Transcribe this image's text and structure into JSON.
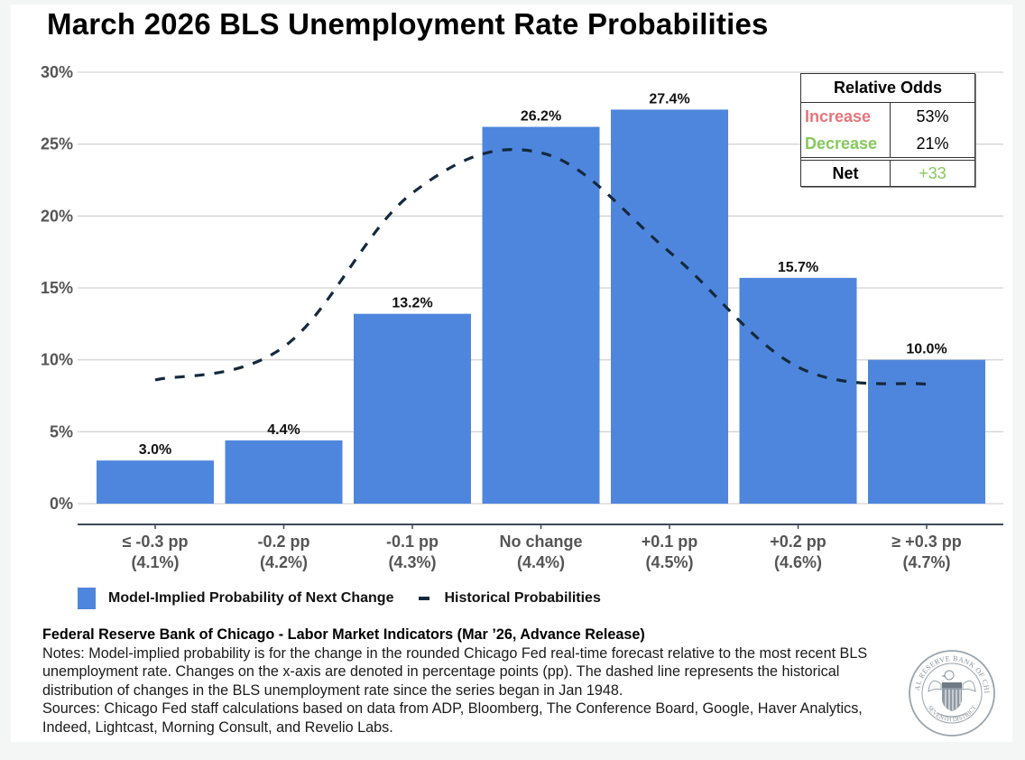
{
  "title": "March 2026 BLS Unemployment Rate Probabilities",
  "colors": {
    "bar": "#4f86dd",
    "line": "#14293d",
    "increase": "#e8747a",
    "decrease": "#86c95a",
    "net": "#86c95a"
  },
  "relative_odds": {
    "header": "Relative Odds",
    "rows": [
      {
        "label": "Increase",
        "value": "53%"
      },
      {
        "label": "Decrease",
        "value": "21%"
      }
    ],
    "net_label": "Net",
    "net_value": "+33"
  },
  "legend": {
    "bars": "Model-Implied Probability of Next Change",
    "line": "Historical Probabilities"
  },
  "footer": {
    "source": "Federal Reserve Bank of Chicago - Labor Market Indicators (Mar ’26, Advance Release)",
    "notes": "Notes: Model-implied probability is for the change in the rounded Chicago Fed real-time forecast relative to the most recent BLS unemployment rate. Changes on the x-axis are denoted in percentage points (pp). The dashed line represents the historical distribution of changes in the BLS unemployment rate since the series began in Jan 1948.",
    "sources": "Sources: Chicago Fed staff calculations based on data from ADP, Bloomberg, The Conference Board, Google, Haver Analytics, Indeed, Lightcast, Morning Consult, and Revelio Labs."
  },
  "seal": {
    "top_text": "FEDERAL RESERVE BANK OF CHICAGO",
    "bottom_text": "SEVENTH DISTRICT"
  },
  "chart_data": {
    "type": "bar",
    "title": "March 2026 BLS Unemployment Rate Probabilities",
    "xlabel": "",
    "ylabel": "",
    "ylim": [
      0,
      30
    ],
    "yticks": [
      0,
      5,
      10,
      15,
      20,
      25,
      30
    ],
    "ytick_labels": [
      "0%",
      "5%",
      "10%",
      "15%",
      "20%",
      "25%",
      "30%"
    ],
    "grid": true,
    "legend_position": "bottom-left",
    "categories": [
      [
        "≤ -0.3 pp",
        "(4.1%)"
      ],
      [
        "-0.2 pp",
        "(4.2%)"
      ],
      [
        "-0.1 pp",
        "(4.3%)"
      ],
      [
        "No change",
        "(4.4%)"
      ],
      [
        "+0.1 pp",
        "(4.5%)"
      ],
      [
        "+0.2 pp",
        "(4.6%)"
      ],
      [
        "≥ +0.3 pp",
        "(4.7%)"
      ]
    ],
    "series": [
      {
        "name": "Model-Implied Probability of Next Change",
        "type": "bar",
        "values": [
          3.0,
          4.4,
          13.2,
          26.2,
          27.4,
          15.7,
          10.0
        ],
        "labels": [
          "3.0%",
          "4.4%",
          "13.2%",
          "26.2%",
          "27.4%",
          "15.7%",
          "10.0%"
        ]
      },
      {
        "name": "Historical Probabilities",
        "type": "line",
        "style": "dashed",
        "values": [
          8.6,
          10.9,
          21.6,
          24.4,
          17.5,
          9.5,
          8.3
        ]
      }
    ]
  }
}
